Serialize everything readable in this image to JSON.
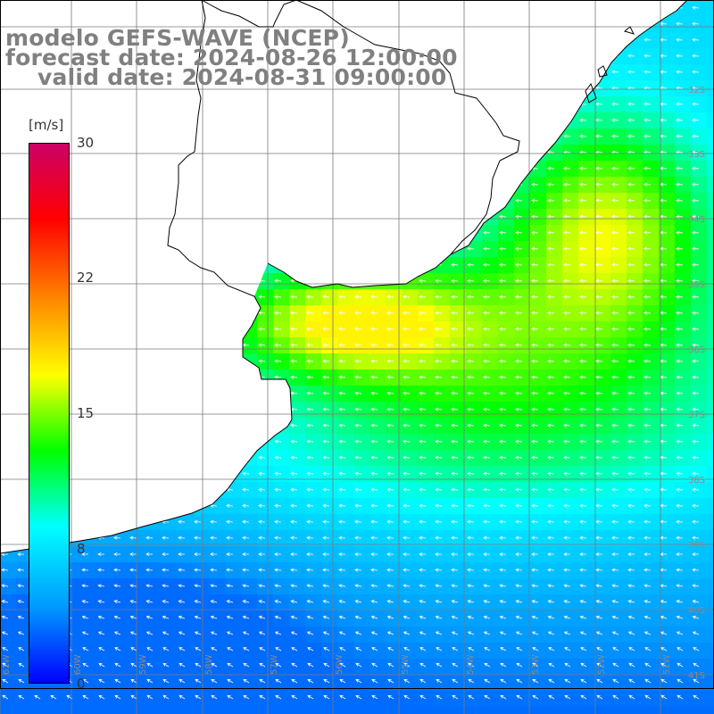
{
  "title": {
    "line1": "modelo GEFS-WAVE (NCEP)",
    "line2": "forecast date: 2024-08-26 12:00:00",
    "line3": "valid date: 2024-08-31 09:00:00"
  },
  "legend": {
    "unit": "[m/s]",
    "ticks": [
      "30",
      "22",
      "15",
      "8",
      "0"
    ],
    "tick_values": [
      30,
      22,
      15,
      8,
      0
    ],
    "range": [
      0,
      30
    ],
    "colors": [
      "#0000ff",
      "#0099ff",
      "#00ffff",
      "#00ff00",
      "#ffff00",
      "#ff8800",
      "#ff0000",
      "#cc0066"
    ]
  },
  "map": {
    "latitude_labels": [
      "32S",
      "33S",
      "34S",
      "35S",
      "36S",
      "37S",
      "38S",
      "39S",
      "40S",
      "41S"
    ],
    "longitude_labels": [
      "61W",
      "60W",
      "59W",
      "58W",
      "57W",
      "56W",
      "55W",
      "54W",
      "53W",
      "52W",
      "51W"
    ],
    "wind_direction": "predominantly from the east, toward the coast",
    "colors": {
      "land": "#ffffff",
      "coastline": "#000000",
      "grid": "#7a7a7a",
      "arrows": "#ffffff"
    }
  }
}
